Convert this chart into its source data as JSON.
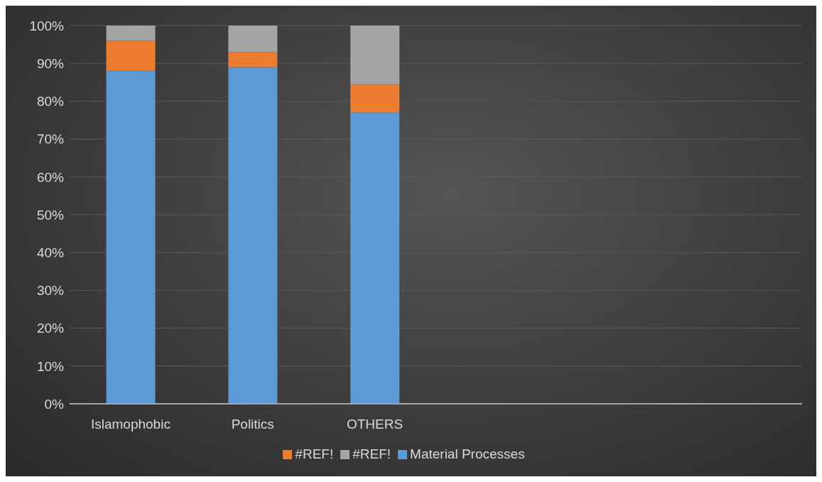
{
  "chart_data": {
    "type": "bar",
    "stacked": true,
    "categories": [
      "Islamophobic",
      "Politics",
      "OTHERS",
      null,
      null,
      null
    ],
    "series": [
      {
        "name": "Material Processes",
        "color": "#5b9bd5",
        "values": [
          88,
          89,
          77,
          null,
          null,
          null
        ]
      },
      {
        "name": "#REF!",
        "color": "#ed7d31",
        "values": [
          8,
          4,
          7.5,
          null,
          null,
          null
        ]
      },
      {
        "name": "#REF!",
        "color": "#a5a5a5",
        "values": [
          4,
          7,
          15.5,
          null,
          null,
          null
        ]
      }
    ],
    "ylim": [
      0,
      100
    ],
    "yticks": [
      {
        "value": 0,
        "label": "0%"
      },
      {
        "value": 10,
        "label": "10%"
      },
      {
        "value": 20,
        "label": "20%"
      },
      {
        "value": 30,
        "label": "30%"
      },
      {
        "value": 40,
        "label": "40%"
      },
      {
        "value": 50,
        "label": "50%"
      },
      {
        "value": 60,
        "label": "60%"
      },
      {
        "value": 70,
        "label": "70%"
      },
      {
        "value": 80,
        "label": "80%"
      },
      {
        "value": 90,
        "label": "90%"
      },
      {
        "value": 100,
        "label": "100%"
      }
    ],
    "grid": "y",
    "legend": "bottom"
  }
}
